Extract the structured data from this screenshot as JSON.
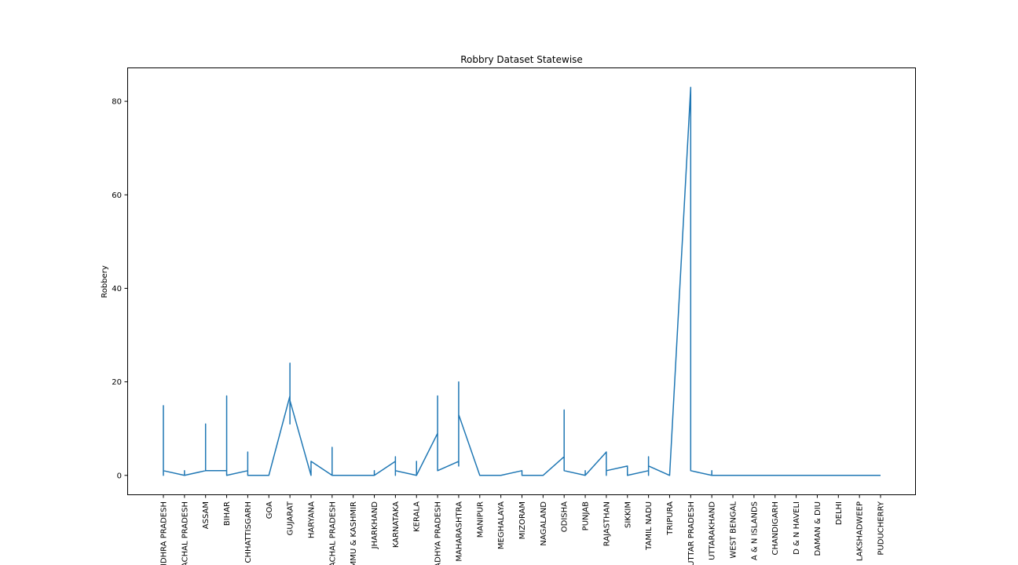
{
  "chart_data": {
    "type": "line",
    "title": "Robbry Dataset Statewise",
    "xlabel": "",
    "ylabel": "Robbery",
    "ylim": [
      -4.15,
      87.15
    ],
    "yticks": [
      0,
      20,
      40,
      60,
      80
    ],
    "yticklabels": [
      "0",
      "20",
      "40",
      "60",
      "80"
    ],
    "grid": false,
    "line_color": "#1f77b4",
    "categories": [
      "ANDHRA PRADESH",
      "ARUNACHAL PRADESH",
      "ASSAM",
      "BIHAR",
      "CHHATTISGARH",
      "GOA",
      "GUJARAT",
      "HARYANA",
      "HIMACHAL PRADESH",
      "JAMMU & KASHMIR",
      "JHARKHAND",
      "KARNATAKA",
      "KERALA",
      "MADHYA PRADESH",
      "MAHARASHTRA",
      "MANIPUR",
      "MEGHALAYA",
      "MIZORAM",
      "NAGALAND",
      "ODISHA",
      "PUNJAB",
      "RAJASTHAN",
      "SIKKIM",
      "TAMIL NADU",
      "TRIPURA",
      "UTTAR PRADESH",
      "UTTARAKHAND",
      "WEST BENGAL",
      "A & N ISLANDS",
      "CHANDIGARH",
      "D & N HAVELI",
      "DAMAN & DIU",
      "DELHI",
      "LAKSHADWEEP",
      "PUDUCHERRY"
    ],
    "xticklabels": [
      "ANDHRA PRADESH",
      "ARUNACHAL PRADESH",
      "ASSAM",
      "BIHAR",
      "CHHATTISGARH",
      "GOA",
      "GUJARAT",
      "HARYANA",
      "HIMACHAL PRADESH",
      "JAMMU & KASHMIR",
      "JHARKHAND",
      "KARNATAKA",
      "KERALA",
      "MADHYA PRADESH",
      "MAHARASHTRA",
      "MANIPUR",
      "MEGHALAYA",
      "MIZORAM",
      "NAGALAND",
      "ODISHA",
      "PUNJAB",
      "RAJASTHAN",
      "SIKKIM",
      "TAMIL NADU",
      "TRIPURA",
      "UTTAR PRADESH",
      "UTTARAKHAND",
      "WEST BENGAL",
      "A & N ISLANDS",
      "CHANDIGARH",
      "D & N HAVELI",
      "DAMAN & DIU",
      "DELHI",
      "LAKSHADWEEP",
      "PUDUCHERRY"
    ],
    "series": [
      {
        "points": [
          [
            "ANDHRA PRADESH",
            15
          ],
          [
            "ANDHRA PRADESH",
            0
          ],
          [
            "ANDHRA PRADESH",
            1
          ],
          [
            "ARUNACHAL PRADESH",
            0
          ],
          [
            "ARUNACHAL PRADESH",
            1
          ],
          [
            "ARUNACHAL PRADESH",
            0
          ],
          [
            "ASSAM",
            1
          ],
          [
            "ASSAM",
            11
          ],
          [
            "ASSAM",
            1
          ],
          [
            "BIHAR",
            1
          ],
          [
            "BIHAR",
            17
          ],
          [
            "BIHAR",
            0
          ],
          [
            "CHHATTISGARH",
            1
          ],
          [
            "CHHATTISGARH",
            5
          ],
          [
            "CHHATTISGARH",
            0
          ],
          [
            "GOA",
            0
          ],
          [
            "GUJARAT",
            17
          ],
          [
            "GUJARAT",
            24
          ],
          [
            "GUJARAT",
            11
          ],
          [
            "GUJARAT",
            16
          ],
          [
            "HARYANA",
            0
          ],
          [
            "HARYANA",
            3
          ],
          [
            "HIMACHAL PRADESH",
            0
          ],
          [
            "HIMACHAL PRADESH",
            6
          ],
          [
            "HIMACHAL PRADESH",
            0
          ],
          [
            "JAMMU & KASHMIR",
            0
          ],
          [
            "JHARKHAND",
            0
          ],
          [
            "JHARKHAND",
            1
          ],
          [
            "JHARKHAND",
            0
          ],
          [
            "KARNATAKA",
            3
          ],
          [
            "KARNATAKA",
            4
          ],
          [
            "KARNATAKA",
            0
          ],
          [
            "KARNATAKA",
            1
          ],
          [
            "KERALA",
            0
          ],
          [
            "KERALA",
            3
          ],
          [
            "KERALA",
            0
          ],
          [
            "MADHYA PRADESH",
            9
          ],
          [
            "MADHYA PRADESH",
            17
          ],
          [
            "MADHYA PRADESH",
            1
          ],
          [
            "MAHARASHTRA",
            3
          ],
          [
            "MAHARASHTRA",
            20
          ],
          [
            "MAHARASHTRA",
            2
          ],
          [
            "MAHARASHTRA",
            13
          ],
          [
            "MANIPUR",
            0
          ],
          [
            "MEGHALAYA",
            0
          ],
          [
            "MIZORAM",
            1
          ],
          [
            "MIZORAM",
            0
          ],
          [
            "NAGALAND",
            0
          ],
          [
            "ODISHA",
            4
          ],
          [
            "ODISHA",
            14
          ],
          [
            "ODISHA",
            1
          ],
          [
            "PUNJAB",
            0
          ],
          [
            "PUNJAB",
            1
          ],
          [
            "PUNJAB",
            0
          ],
          [
            "RAJASTHAN",
            5
          ],
          [
            "RAJASTHAN",
            0
          ],
          [
            "RAJASTHAN",
            1
          ],
          [
            "SIKKIM",
            2
          ],
          [
            "SIKKIM",
            0
          ],
          [
            "TAMIL NADU",
            1
          ],
          [
            "TAMIL NADU",
            4
          ],
          [
            "TAMIL NADU",
            0
          ],
          [
            "TAMIL NADU",
            2
          ],
          [
            "TRIPURA",
            0
          ],
          [
            "UTTAR PRADESH",
            83
          ],
          [
            "UTTAR PRADESH",
            1
          ],
          [
            "UTTARAKHAND",
            0
          ],
          [
            "UTTARAKHAND",
            1
          ],
          [
            "UTTARAKHAND",
            0
          ],
          [
            "WEST BENGAL",
            0
          ],
          [
            "A & N ISLANDS",
            0
          ],
          [
            "CHANDIGARH",
            0
          ],
          [
            "D & N HAVELI",
            0
          ],
          [
            "DAMAN & DIU",
            0
          ],
          [
            "DELHI",
            0
          ],
          [
            "LAKSHADWEEP",
            0
          ],
          [
            "PUDUCHERRY",
            0
          ]
        ]
      }
    ]
  }
}
